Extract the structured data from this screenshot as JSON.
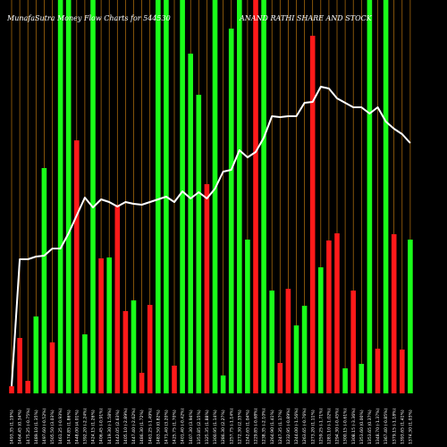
{
  "chart_data": {
    "type": "bar",
    "title_left": "MunafaSutra  Money Flow  Charts for 544530",
    "title_right": "ANAND RATHI SHARE AND STOCK",
    "ylim": [
      0,
      440
    ],
    "grid": "vertical",
    "colors": {
      "up": "#1aff1a",
      "down": "#ff1a1a",
      "line": "#ffffff",
      "grid": "#b8740e",
      "background": "#000000"
    },
    "categories": [
      "1493.35 (1.19%)",
      "1464.45 (0.34%)",
      "1475.25 (-0.75%)",
      "1489.10 (1.35%)",
      "1497.60 (-0.52%)",
      "1505.50 (3.03%)",
      "1461.25 (-0.93%)",
      "1474.85 (1.86%)",
      "1448.00 (4.01%)",
      "1392.20 (-2.24%)",
      "1424.15 (1.26%)",
      "1406.45 (-0.91%)",
      "1419.30 (-1.58%)",
      "1442.05 (2.63%)",
      "1405.10 (-2.89%)",
      "1447.40 (-2.62%)",
      "1486.30 (1.72%)",
      "1461.25 (-1.49%)",
      "1483.50 (0.82%)",
      "1471.40 (3.20%)",
      "1425.75 (1.70%)",
      "1401.40 (-0.42%)",
      "1407.30 (3.94%)",
      "1353.85 (2.15%)",
      "1325.35 (1.88%)",
      "1300.95 (1.14%)",
      "1286.30 (2.27%)",
      "1257.75 (-1.14%)",
      "1272.30 (2.35%)",
      "1242.65 (1.04%)",
      "1229.85 (-0.68%)",
      "1238.35 (-2.10%)",
      "1264.90 (1.41%)",
      "1247.35 (1.17%)",
      "1232.95 (-0.89%)",
      "1244.00 (-1.56%)",
      "1263.65 (-0.76%)",
      "1273.20 (1.11%)",
      "1259.25 (-1.71%)",
      "1281.10 (-1.02%)",
      "1294.30 (-0.45%)",
      "1300.15 (-0.61%)",
      "1308.15 (-3.36%)",
      "1353.60 (0.00%)",
      "1353.65 (0.37%)",
      "1348.70 (-1.37%)",
      "1367.40 (-0.85%)",
      "1379.15 (-1.18%)",
      "1393.65 (1.41%)",
      "1374.30 (1.03%)"
    ],
    "series": [
      {
        "kind": "bars",
        "colors": [
          "down",
          "down",
          "down",
          "up",
          "up",
          "down",
          "up",
          "up",
          "down",
          "up",
          "up",
          "down",
          "up",
          "down",
          "down",
          "up",
          "down",
          "down",
          "up",
          "up",
          "down",
          "up",
          "up",
          "up",
          "down",
          "up",
          "up",
          "up",
          "up",
          "up",
          "down",
          "up",
          "up",
          "down",
          "down",
          "up",
          "up",
          "down",
          "up",
          "down",
          "down",
          "up",
          "down",
          "up",
          "up",
          "down",
          "up",
          "down",
          "down",
          "up"
        ],
        "values": [
          8,
          62,
          14,
          86,
          252,
          57,
          440,
          440,
          283,
          66,
          440,
          151,
          152,
          211,
          92,
          104,
          23,
          99,
          440,
          440,
          31,
          440,
          380,
          334,
          234,
          440,
          20,
          408,
          440,
          172,
          440,
          440,
          115,
          34,
          117,
          76,
          98,
          400,
          141,
          171,
          179,
          28,
          115,
          33,
          440,
          50,
          440,
          178,
          49,
          172
        ]
      },
      {
        "kind": "line",
        "values": [
          8,
          150,
          150,
          153,
          154,
          162,
          162,
          179,
          199,
          219,
          208,
          217,
          214,
          209,
          214,
          212,
          211,
          214,
          217,
          220,
          214,
          226,
          218,
          225,
          218,
          229,
          248,
          250,
          272,
          264,
          270,
          286,
          310,
          309,
          310,
          310,
          325,
          326,
          343,
          341,
          330,
          325,
          320,
          320,
          313,
          320,
          304,
          296,
          290,
          280
        ]
      }
    ]
  }
}
